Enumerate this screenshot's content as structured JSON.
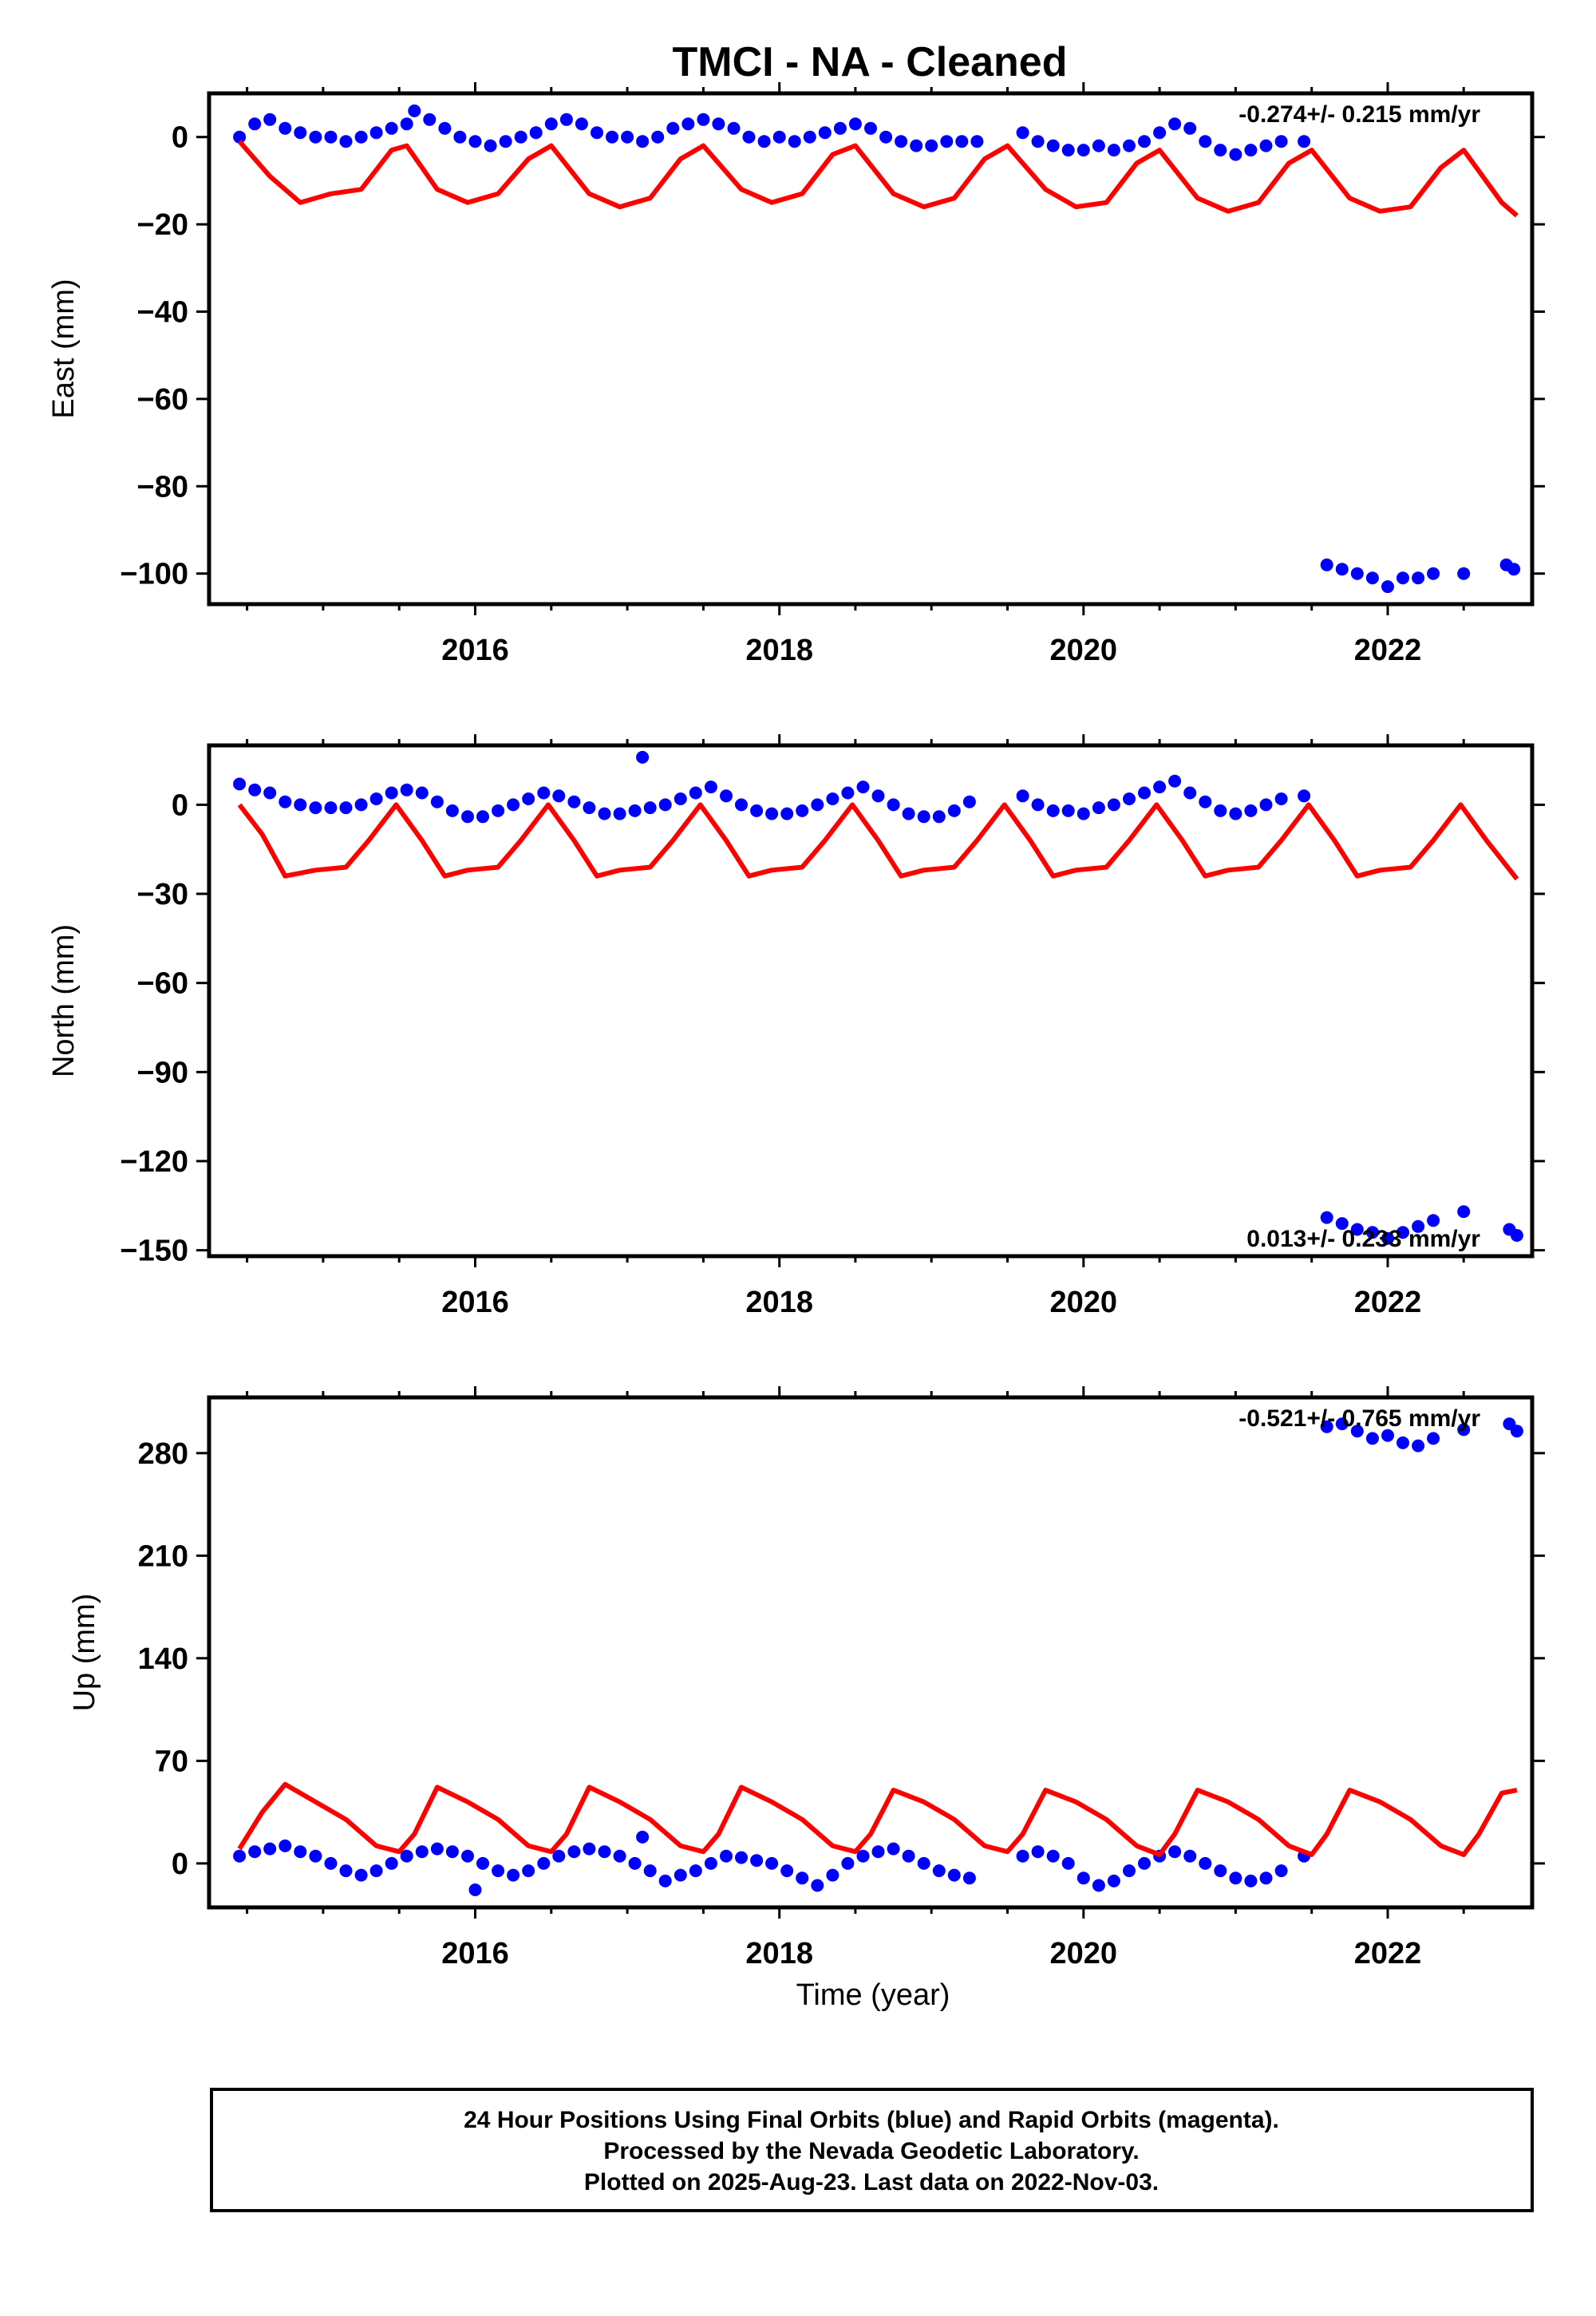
{
  "title": "TMCI  - NA - Cleaned",
  "xlabel": "Time (year)",
  "caption": [
    "24 Hour Positions Using Final Orbits (blue) and Rapid Orbits (magenta).",
    "Processed by the Nevada Geodetic Laboratory.",
    "Plotted on 2025-Aug-23. Last data on 2022-Nov-03."
  ],
  "colors": {
    "data": "#0000ff",
    "model": "#ff0000",
    "frame": "#000000"
  },
  "chart_data": [
    {
      "type": "scatter",
      "ylabel": "East (mm)",
      "rate_label": "-0.274+/- 0.215 mm/yr",
      "rate_position": "top-right",
      "xlim": [
        2014.25,
        2022.95
      ],
      "ylim": [
        -107,
        10
      ],
      "xticks": [
        2016,
        2018,
        2020,
        2022
      ],
      "xtick_labels": [
        "2016",
        "2018",
        "2020",
        "2022"
      ],
      "yticks": [
        0,
        -20,
        -40,
        -60,
        -80,
        -100
      ],
      "ytick_labels": [
        "0",
        "−20",
        "−40",
        "−60",
        "−80",
        "−100"
      ],
      "grid": false,
      "series": [
        {
          "color": "#0000ff",
          "x": [
            2014.45,
            2014.55,
            2014.65,
            2014.75,
            2014.85,
            2014.95,
            2015.05,
            2015.15,
            2015.25,
            2015.35,
            2015.45,
            2015.55,
            2015.6,
            2015.7,
            2015.8,
            2015.9,
            2016.0,
            2016.1,
            2016.2,
            2016.3,
            2016.4,
            2016.5,
            2016.6,
            2016.7,
            2016.8,
            2016.9,
            2017.0,
            2017.1,
            2017.2,
            2017.3,
            2017.4,
            2017.5,
            2017.6,
            2017.7,
            2017.8,
            2017.9,
            2018.0,
            2018.1,
            2018.2,
            2018.3,
            2018.4,
            2018.5,
            2018.6,
            2018.7,
            2018.8,
            2018.9,
            2019.0,
            2019.1,
            2019.2,
            2019.3,
            2019.6,
            2019.7,
            2019.8,
            2019.9,
            2020.0,
            2020.1,
            2020.2,
            2020.3,
            2020.4,
            2020.5,
            2020.6,
            2020.7,
            2020.8,
            2020.9,
            2021.0,
            2021.1,
            2021.2,
            2021.3,
            2021.45,
            2021.6,
            2021.7,
            2021.8,
            2021.9,
            2022.0,
            2022.1,
            2022.2,
            2022.3,
            2022.5,
            2022.78,
            2022.83
          ],
          "y": [
            0,
            3,
            4,
            2,
            1,
            0,
            0,
            -1,
            0,
            1,
            2,
            3,
            6,
            4,
            2,
            0,
            -1,
            -2,
            -1,
            0,
            1,
            3,
            4,
            3,
            1,
            0,
            0,
            -1,
            0,
            2,
            3,
            4,
            3,
            2,
            0,
            -1,
            0,
            -1,
            0,
            1,
            2,
            3,
            2,
            0,
            -1,
            -2,
            -2,
            -1,
            -1,
            -1,
            1,
            -1,
            -2,
            -3,
            -3,
            -2,
            -3,
            -2,
            -1,
            1,
            3,
            2,
            -1,
            -3,
            -4,
            -3,
            -2,
            -1,
            -1,
            -98,
            -99,
            -100,
            -101,
            -103,
            -101,
            -101,
            -100,
            -100,
            -98,
            -99
          ]
        },
        {
          "color": "#ff0000",
          "x": [
            2014.45,
            2014.65,
            2014.85,
            2015.05,
            2015.25,
            2015.45,
            2015.55,
            2015.75,
            2015.95,
            2016.15,
            2016.35,
            2016.5,
            2016.75,
            2016.95,
            2017.15,
            2017.35,
            2017.5,
            2017.75,
            2017.95,
            2018.15,
            2018.35,
            2018.5,
            2018.75,
            2018.95,
            2019.15,
            2019.35,
            2019.5,
            2019.75,
            2019.95,
            2020.15,
            2020.35,
            2020.5,
            2020.75,
            2020.95,
            2021.15,
            2021.35,
            2021.5,
            2021.75,
            2021.95,
            2022.15,
            2022.35,
            2022.5,
            2022.75,
            2022.85
          ],
          "y": [
            -1,
            -9,
            -15,
            -13,
            -12,
            -3,
            -2,
            -12,
            -15,
            -13,
            -5,
            -2,
            -13,
            -16,
            -14,
            -5,
            -2,
            -12,
            -15,
            -13,
            -4,
            -2,
            -13,
            -16,
            -14,
            -5,
            -2,
            -12,
            -16,
            -15,
            -6,
            -3,
            -14,
            -17,
            -15,
            -6,
            -3,
            -14,
            -17,
            -16,
            -7,
            -3,
            -15,
            -18
          ]
        }
      ]
    },
    {
      "type": "scatter",
      "ylabel": "North (mm)",
      "rate_label": "0.013+/- 0.233 mm/yr",
      "rate_position": "bottom-right",
      "xlim": [
        2014.25,
        2022.95
      ],
      "ylim": [
        -152,
        20
      ],
      "xticks": [
        2016,
        2018,
        2020,
        2022
      ],
      "xtick_labels": [
        "2016",
        "2018",
        "2020",
        "2022"
      ],
      "yticks": [
        0,
        -30,
        -60,
        -90,
        -120,
        -150
      ],
      "ytick_labels": [
        "0",
        "−30",
        "−60",
        "−90",
        "−120",
        "−150"
      ],
      "grid": false,
      "series": [
        {
          "color": "#0000ff",
          "x": [
            2014.45,
            2014.55,
            2014.65,
            2014.75,
            2014.85,
            2014.95,
            2015.05,
            2015.15,
            2015.25,
            2015.35,
            2015.45,
            2015.55,
            2015.65,
            2015.75,
            2015.85,
            2015.95,
            2016.05,
            2016.15,
            2016.25,
            2016.35,
            2016.45,
            2016.55,
            2016.65,
            2016.75,
            2016.85,
            2016.95,
            2017.05,
            2017.1,
            2017.15,
            2017.25,
            2017.35,
            2017.45,
            2017.55,
            2017.65,
            2017.75,
            2017.85,
            2017.95,
            2018.05,
            2018.15,
            2018.25,
            2018.35,
            2018.45,
            2018.55,
            2018.65,
            2018.75,
            2018.85,
            2018.95,
            2019.05,
            2019.15,
            2019.25,
            2019.6,
            2019.7,
            2019.8,
            2019.9,
            2020.0,
            2020.1,
            2020.2,
            2020.3,
            2020.4,
            2020.5,
            2020.6,
            2020.7,
            2020.8,
            2020.9,
            2021.0,
            2021.1,
            2021.2,
            2021.3,
            2021.45,
            2021.6,
            2021.7,
            2021.8,
            2021.9,
            2022.0,
            2022.1,
            2022.2,
            2022.3,
            2022.5,
            2022.8,
            2022.85
          ],
          "y": [
            7,
            5,
            4,
            1,
            0,
            -1,
            -1,
            -1,
            0,
            2,
            4,
            5,
            4,
            1,
            -2,
            -4,
            -4,
            -2,
            0,
            2,
            4,
            3,
            1,
            -1,
            -3,
            -3,
            -2,
            16,
            -1,
            0,
            2,
            4,
            6,
            3,
            0,
            -2,
            -3,
            -3,
            -2,
            0,
            2,
            4,
            6,
            3,
            0,
            -3,
            -4,
            -4,
            -2,
            1,
            3,
            0,
            -2,
            -2,
            -3,
            -1,
            0,
            2,
            4,
            6,
            8,
            4,
            1,
            -2,
            -3,
            -2,
            0,
            2,
            3,
            -139,
            -141,
            -143,
            -144,
            -146,
            -144,
            -142,
            -140,
            -137,
            -143,
            -145
          ]
        },
        {
          "color": "#ff0000",
          "x": [
            2014.45,
            2014.6,
            2014.75,
            2014.95,
            2015.15,
            2015.3,
            2015.48,
            2015.65,
            2015.8,
            2015.95,
            2016.15,
            2016.3,
            2016.48,
            2016.65,
            2016.8,
            2016.95,
            2017.15,
            2017.3,
            2017.48,
            2017.65,
            2017.8,
            2017.95,
            2018.15,
            2018.3,
            2018.48,
            2018.65,
            2018.8,
            2018.95,
            2019.15,
            2019.3,
            2019.48,
            2019.65,
            2019.8,
            2019.95,
            2020.15,
            2020.3,
            2020.48,
            2020.65,
            2020.8,
            2020.95,
            2021.15,
            2021.3,
            2021.48,
            2021.65,
            2021.8,
            2021.95,
            2022.15,
            2022.3,
            2022.48,
            2022.65,
            2022.85
          ],
          "y": [
            0,
            -10,
            -24,
            -22,
            -21,
            -12,
            0,
            -12,
            -24,
            -22,
            -21,
            -12,
            0,
            -12,
            -24,
            -22,
            -21,
            -12,
            0,
            -12,
            -24,
            -22,
            -21,
            -12,
            0,
            -12,
            -24,
            -22,
            -21,
            -12,
            0,
            -12,
            -24,
            -22,
            -21,
            -12,
            0,
            -12,
            -24,
            -22,
            -21,
            -12,
            0,
            -12,
            -24,
            -22,
            -21,
            -12,
            0,
            -12,
            -25
          ]
        }
      ]
    },
    {
      "type": "scatter",
      "ylabel": "Up (mm)",
      "rate_label": "-0.521+/- 0.765 mm/yr",
      "rate_position": "top-right",
      "xlim": [
        2014.25,
        2022.95
      ],
      "ylim": [
        -30,
        318
      ],
      "xticks": [
        2016,
        2018,
        2020,
        2022
      ],
      "xtick_labels": [
        "2016",
        "2018",
        "2020",
        "2022"
      ],
      "yticks": [
        0,
        70,
        140,
        210,
        280
      ],
      "ytick_labels": [
        "0",
        "70",
        "140",
        "210",
        "280"
      ],
      "grid": false,
      "series": [
        {
          "color": "#0000ff",
          "x": [
            2014.45,
            2014.55,
            2014.65,
            2014.75,
            2014.85,
            2014.95,
            2015.05,
            2015.15,
            2015.25,
            2015.35,
            2015.45,
            2015.55,
            2015.65,
            2015.75,
            2015.85,
            2015.95,
            2016.0,
            2016.05,
            2016.15,
            2016.25,
            2016.35,
            2016.45,
            2016.55,
            2016.65,
            2016.75,
            2016.85,
            2016.95,
            2017.05,
            2017.1,
            2017.15,
            2017.25,
            2017.35,
            2017.45,
            2017.55,
            2017.65,
            2017.75,
            2017.85,
            2017.95,
            2018.05,
            2018.15,
            2018.25,
            2018.35,
            2018.45,
            2018.55,
            2018.65,
            2018.75,
            2018.85,
            2018.95,
            2019.05,
            2019.15,
            2019.25,
            2019.6,
            2019.7,
            2019.8,
            2019.9,
            2020.0,
            2020.1,
            2020.2,
            2020.3,
            2020.4,
            2020.5,
            2020.6,
            2020.7,
            2020.8,
            2020.9,
            2021.0,
            2021.1,
            2021.2,
            2021.3,
            2021.45,
            2021.6,
            2021.7,
            2021.8,
            2021.9,
            2022.0,
            2022.1,
            2022.2,
            2022.3,
            2022.5,
            2022.8,
            2022.85
          ],
          "y": [
            5,
            8,
            10,
            12,
            8,
            5,
            0,
            -5,
            -8,
            -5,
            0,
            5,
            8,
            10,
            8,
            5,
            -18,
            0,
            -5,
            -8,
            -5,
            0,
            5,
            8,
            10,
            8,
            5,
            0,
            18,
            -5,
            -12,
            -8,
            -5,
            0,
            5,
            4,
            2,
            0,
            -5,
            -10,
            -15,
            -8,
            0,
            5,
            8,
            10,
            5,
            0,
            -5,
            -8,
            -10,
            5,
            8,
            5,
            0,
            -10,
            -15,
            -12,
            -5,
            0,
            5,
            8,
            5,
            0,
            -5,
            -10,
            -12,
            -10,
            -5,
            5,
            298,
            300,
            295,
            290,
            292,
            287,
            285,
            290,
            296,
            300,
            295
          ]
        },
        {
          "color": "#ff0000",
          "x": [
            2014.45,
            2014.6,
            2014.75,
            2014.95,
            2015.15,
            2015.35,
            2015.5,
            2015.6,
            2015.75,
            2015.95,
            2016.15,
            2016.35,
            2016.5,
            2016.6,
            2016.75,
            2016.95,
            2017.15,
            2017.35,
            2017.5,
            2017.6,
            2017.75,
            2017.95,
            2018.15,
            2018.35,
            2018.5,
            2018.6,
            2018.75,
            2018.95,
            2019.15,
            2019.35,
            2019.5,
            2019.6,
            2019.75,
            2019.95,
            2020.15,
            2020.35,
            2020.5,
            2020.6,
            2020.75,
            2020.95,
            2021.15,
            2021.35,
            2021.5,
            2021.6,
            2021.75,
            2021.95,
            2022.15,
            2022.35,
            2022.5,
            2022.6,
            2022.75,
            2022.85
          ],
          "y": [
            10,
            35,
            54,
            42,
            30,
            12,
            8,
            20,
            52,
            42,
            30,
            12,
            8,
            20,
            52,
            42,
            30,
            12,
            8,
            20,
            52,
            42,
            30,
            12,
            8,
            20,
            50,
            42,
            30,
            12,
            8,
            20,
            50,
            42,
            30,
            12,
            6,
            20,
            50,
            42,
            30,
            12,
            6,
            20,
            50,
            42,
            30,
            12,
            6,
            20,
            48,
            50
          ]
        }
      ]
    }
  ]
}
